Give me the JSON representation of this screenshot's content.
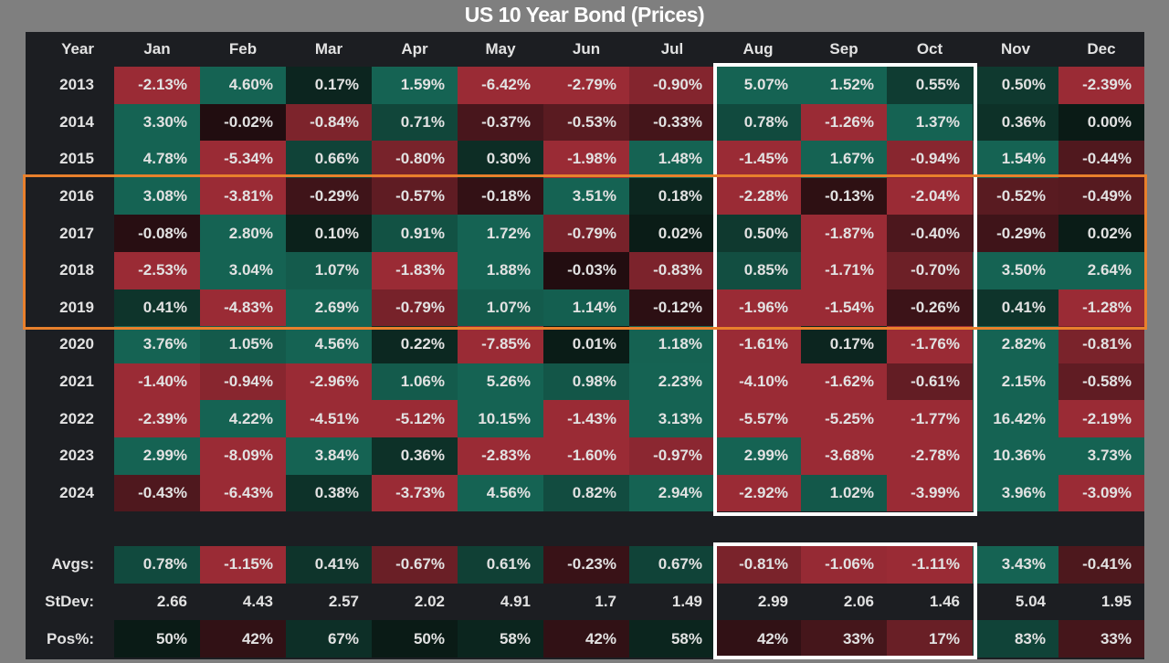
{
  "title": "US 10 Year Bond (Prices)",
  "columns": [
    "Year",
    "Jan",
    "Feb",
    "Mar",
    "Apr",
    "May",
    "Jun",
    "Jul",
    "Aug",
    "Sep",
    "Oct",
    "Nov",
    "Dec"
  ],
  "rows": [
    {
      "year": "2013",
      "cells": [
        "-2.13%",
        "4.60%",
        "0.17%",
        "1.59%",
        "-6.42%",
        "-2.79%",
        "-0.90%",
        "5.07%",
        "1.52%",
        "0.55%",
        "0.50%",
        "-2.39%"
      ]
    },
    {
      "year": "2014",
      "cells": [
        "3.30%",
        "-0.02%",
        "-0.84%",
        "0.71%",
        "-0.37%",
        "-0.53%",
        "-0.33%",
        "0.78%",
        "-1.26%",
        "1.37%",
        "0.36%",
        "0.00%"
      ]
    },
    {
      "year": "2015",
      "cells": [
        "4.78%",
        "-5.34%",
        "0.66%",
        "-0.80%",
        "0.30%",
        "-1.98%",
        "1.48%",
        "-1.45%",
        "1.67%",
        "-0.94%",
        "1.54%",
        "-0.44%"
      ]
    },
    {
      "year": "2016",
      "cells": [
        "3.08%",
        "-3.81%",
        "-0.29%",
        "-0.57%",
        "-0.18%",
        "3.51%",
        "0.18%",
        "-2.28%",
        "-0.13%",
        "-2.04%",
        "-0.52%",
        "-0.49%"
      ]
    },
    {
      "year": "2017",
      "cells": [
        "-0.08%",
        "2.80%",
        "0.10%",
        "0.91%",
        "1.72%",
        "-0.79%",
        "0.02%",
        "0.50%",
        "-1.87%",
        "-0.40%",
        "-0.29%",
        "0.02%"
      ]
    },
    {
      "year": "2018",
      "cells": [
        "-2.53%",
        "3.04%",
        "1.07%",
        "-1.83%",
        "1.88%",
        "-0.03%",
        "-0.83%",
        "0.85%",
        "-1.71%",
        "-0.70%",
        "3.50%",
        "2.64%"
      ]
    },
    {
      "year": "2019",
      "cells": [
        "0.41%",
        "-4.83%",
        "2.69%",
        "-0.79%",
        "1.07%",
        "1.14%",
        "-0.12%",
        "-1.96%",
        "-1.54%",
        "-0.26%",
        "0.41%",
        "-1.28%"
      ]
    },
    {
      "year": "2020",
      "cells": [
        "3.76%",
        "1.05%",
        "4.56%",
        "0.22%",
        "-7.85%",
        "0.01%",
        "1.18%",
        "-1.61%",
        "0.17%",
        "-1.76%",
        "2.82%",
        "-0.81%"
      ]
    },
    {
      "year": "2021",
      "cells": [
        "-1.40%",
        "-0.94%",
        "-2.96%",
        "1.06%",
        "5.26%",
        "0.98%",
        "2.23%",
        "-4.10%",
        "-1.62%",
        "-0.61%",
        "2.15%",
        "-0.58%"
      ]
    },
    {
      "year": "2022",
      "cells": [
        "-2.39%",
        "4.22%",
        "-4.51%",
        "-5.12%",
        "10.15%",
        "-1.43%",
        "3.13%",
        "-5.57%",
        "-5.25%",
        "-1.77%",
        "16.42%",
        "-2.19%"
      ]
    },
    {
      "year": "2023",
      "cells": [
        "2.99%",
        "-8.09%",
        "3.84%",
        "0.36%",
        "-2.83%",
        "-1.60%",
        "-0.97%",
        "2.99%",
        "-3.68%",
        "-2.78%",
        "10.36%",
        "3.73%"
      ]
    },
    {
      "year": "2024",
      "cells": [
        "-0.43%",
        "-6.43%",
        "0.38%",
        "-3.73%",
        "4.56%",
        "0.82%",
        "2.94%",
        "-2.92%",
        "1.02%",
        "-3.99%",
        "3.96%",
        "-3.09%"
      ]
    }
  ],
  "summary": {
    "avgs": {
      "label": "Avgs:",
      "cells": [
        "0.78%",
        "-1.15%",
        "0.41%",
        "-0.67%",
        "0.61%",
        "-0.23%",
        "0.67%",
        "-0.81%",
        "-1.06%",
        "-1.11%",
        "3.43%",
        "-0.41%"
      ]
    },
    "stdev": {
      "label": "StDev:",
      "cells": [
        "2.66",
        "4.43",
        "2.57",
        "2.02",
        "4.91",
        "1.7",
        "1.49",
        "2.99",
        "2.06",
        "1.46",
        "5.04",
        "1.95"
      ]
    },
    "pos": {
      "label": "Pos%:",
      "cells": [
        "50%",
        "42%",
        "67%",
        "50%",
        "58%",
        "42%",
        "58%",
        "42%",
        "33%",
        "17%",
        "83%",
        "33%"
      ]
    }
  },
  "highlights": {
    "orange_box_rows": "2016-2019",
    "white_box_columns": "Aug-Oct"
  },
  "colors": {
    "page_bg": "#7f7f7f",
    "panel_bg": "#1c1e22",
    "pos_max": "#156353",
    "pos_base": "#0a1b16",
    "neg_max": "#9a2b35",
    "neg_base": "#1f0c0f",
    "orange_box": "#e8802c",
    "white_box": "#ffffff",
    "text": "#e2e2e2"
  },
  "chart_data": {
    "type": "heatmap",
    "title": "US 10 Year Bond (Prices)",
    "x": [
      "Jan",
      "Feb",
      "Mar",
      "Apr",
      "May",
      "Jun",
      "Jul",
      "Aug",
      "Sep",
      "Oct",
      "Nov",
      "Dec"
    ],
    "y": [
      "2013",
      "2014",
      "2015",
      "2016",
      "2017",
      "2018",
      "2019",
      "2020",
      "2021",
      "2022",
      "2023",
      "2024"
    ],
    "values_pct": [
      [
        -2.13,
        4.6,
        0.17,
        1.59,
        -6.42,
        -2.79,
        -0.9,
        5.07,
        1.52,
        0.55,
        0.5,
        -2.39
      ],
      [
        3.3,
        -0.02,
        -0.84,
        0.71,
        -0.37,
        -0.53,
        -0.33,
        0.78,
        -1.26,
        1.37,
        0.36,
        0.0
      ],
      [
        4.78,
        -5.34,
        0.66,
        -0.8,
        0.3,
        -1.98,
        1.48,
        -1.45,
        1.67,
        -0.94,
        1.54,
        -0.44
      ],
      [
        3.08,
        -3.81,
        -0.29,
        -0.57,
        -0.18,
        3.51,
        0.18,
        -2.28,
        -0.13,
        -2.04,
        -0.52,
        -0.49
      ],
      [
        -0.08,
        2.8,
        0.1,
        0.91,
        1.72,
        -0.79,
        0.02,
        0.5,
        -1.87,
        -0.4,
        -0.29,
        0.02
      ],
      [
        -2.53,
        3.04,
        1.07,
        -1.83,
        1.88,
        -0.03,
        -0.83,
        0.85,
        -1.71,
        -0.7,
        3.5,
        2.64
      ],
      [
        0.41,
        -4.83,
        2.69,
        -0.79,
        1.07,
        1.14,
        -0.12,
        -1.96,
        -1.54,
        -0.26,
        0.41,
        -1.28
      ],
      [
        3.76,
        1.05,
        4.56,
        0.22,
        -7.85,
        0.01,
        1.18,
        -1.61,
        0.17,
        -1.76,
        2.82,
        -0.81
      ],
      [
        -1.4,
        -0.94,
        -2.96,
        1.06,
        5.26,
        0.98,
        2.23,
        -4.1,
        -1.62,
        -0.61,
        2.15,
        -0.58
      ],
      [
        -2.39,
        4.22,
        -4.51,
        -5.12,
        10.15,
        -1.43,
        3.13,
        -5.57,
        -5.25,
        -1.77,
        16.42,
        -2.19
      ],
      [
        2.99,
        -8.09,
        3.84,
        0.36,
        -2.83,
        -1.6,
        -0.97,
        2.99,
        -3.68,
        -2.78,
        10.36,
        3.73
      ],
      [
        -0.43,
        -6.43,
        0.38,
        -3.73,
        4.56,
        0.82,
        2.94,
        -2.92,
        1.02,
        -3.99,
        3.96,
        -3.09
      ]
    ],
    "avgs_pct": [
      0.78,
      -1.15,
      0.41,
      -0.67,
      0.61,
      -0.23,
      0.67,
      -0.81,
      -1.06,
      -1.11,
      3.43,
      -0.41
    ],
    "stdev": [
      2.66,
      4.43,
      2.57,
      2.02,
      4.91,
      1.7,
      1.49,
      2.99,
      2.06,
      1.46,
      5.04,
      1.95
    ],
    "pos_pct": [
      50,
      42,
      67,
      50,
      58,
      42,
      58,
      42,
      33,
      17,
      83,
      33
    ],
    "legend_position": "none",
    "annotations": [
      "orange rectangle around rows 2016-2019",
      "white rectangle around Aug-Oct data cells",
      "white rectangle around Aug-Oct summary cells"
    ]
  }
}
